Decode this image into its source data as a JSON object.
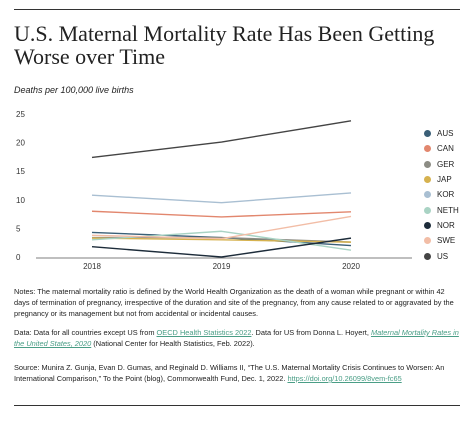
{
  "title": "U.S. Maternal Mortality Rate Has Been Getting Worse over Time",
  "subtitle": "Deaths per 100,000 live births",
  "chart_data": {
    "type": "line",
    "x": [
      "2018",
      "2019",
      "2020"
    ],
    "ylim": [
      0,
      25
    ],
    "yticks": [
      0,
      5,
      10,
      15,
      20,
      25
    ],
    "grid": false,
    "legend_position": "right",
    "series": [
      {
        "name": "AUS",
        "color": "#3a5f77",
        "values": [
          4.3,
          3.4,
          2.0
        ]
      },
      {
        "name": "CAN",
        "color": "#e2876e",
        "values": [
          8.0,
          7.0,
          7.9
        ]
      },
      {
        "name": "GER",
        "color": "#8c8c84",
        "values": [
          3.4,
          3.4,
          2.6
        ]
      },
      {
        "name": "JAP",
        "color": "#d6b24f",
        "values": [
          3.3,
          3.0,
          2.6
        ]
      },
      {
        "name": "KOR",
        "color": "#a9bfd2",
        "values": [
          10.8,
          9.5,
          11.2
        ]
      },
      {
        "name": "NETH",
        "color": "#a9d3c4",
        "values": [
          3.0,
          4.5,
          1.2
        ]
      },
      {
        "name": "NOR",
        "color": "#1d2c3a",
        "values": [
          1.8,
          0,
          3.3
        ]
      },
      {
        "name": "SWE",
        "color": "#f2bda6",
        "values": [
          3.8,
          3.2,
          7.1
        ]
      },
      {
        "name": "US",
        "color": "#444444",
        "values": [
          17.4,
          20.1,
          23.8
        ]
      }
    ]
  },
  "notes": {
    "notes_text": "Notes: The maternal mortality ratio is defined by the World Health Organization as the death of a woman while pregnant or within 42 days of termination of pregnancy, irrespective of the duration and site of the pregnancy, from any cause related to or aggravated by the pregnancy or its management but not from accidental or incidental causes.",
    "data_prefix": "Data: Data for all countries except US from ",
    "data_link1": "OECD Health Statistics 2022",
    "data_mid": ". Data for US from Donna L. Hoyert, ",
    "data_link2": "Maternal Mortality Rates in the United States, 2020",
    "data_suffix": " (National Center for Health Statistics, Feb. 2022).",
    "source_text": "Source: Munira Z. Gunja, Evan D. Gumas, and Reginald D. Williams II, “The U.S. Maternal Mortality Crisis Continues to Worsen: An International Comparison,” To the Point (blog), Commonwealth Fund, Dec. 1, 2022. ",
    "source_link": "https://doi.org/10.26099/8vem-fc65"
  }
}
